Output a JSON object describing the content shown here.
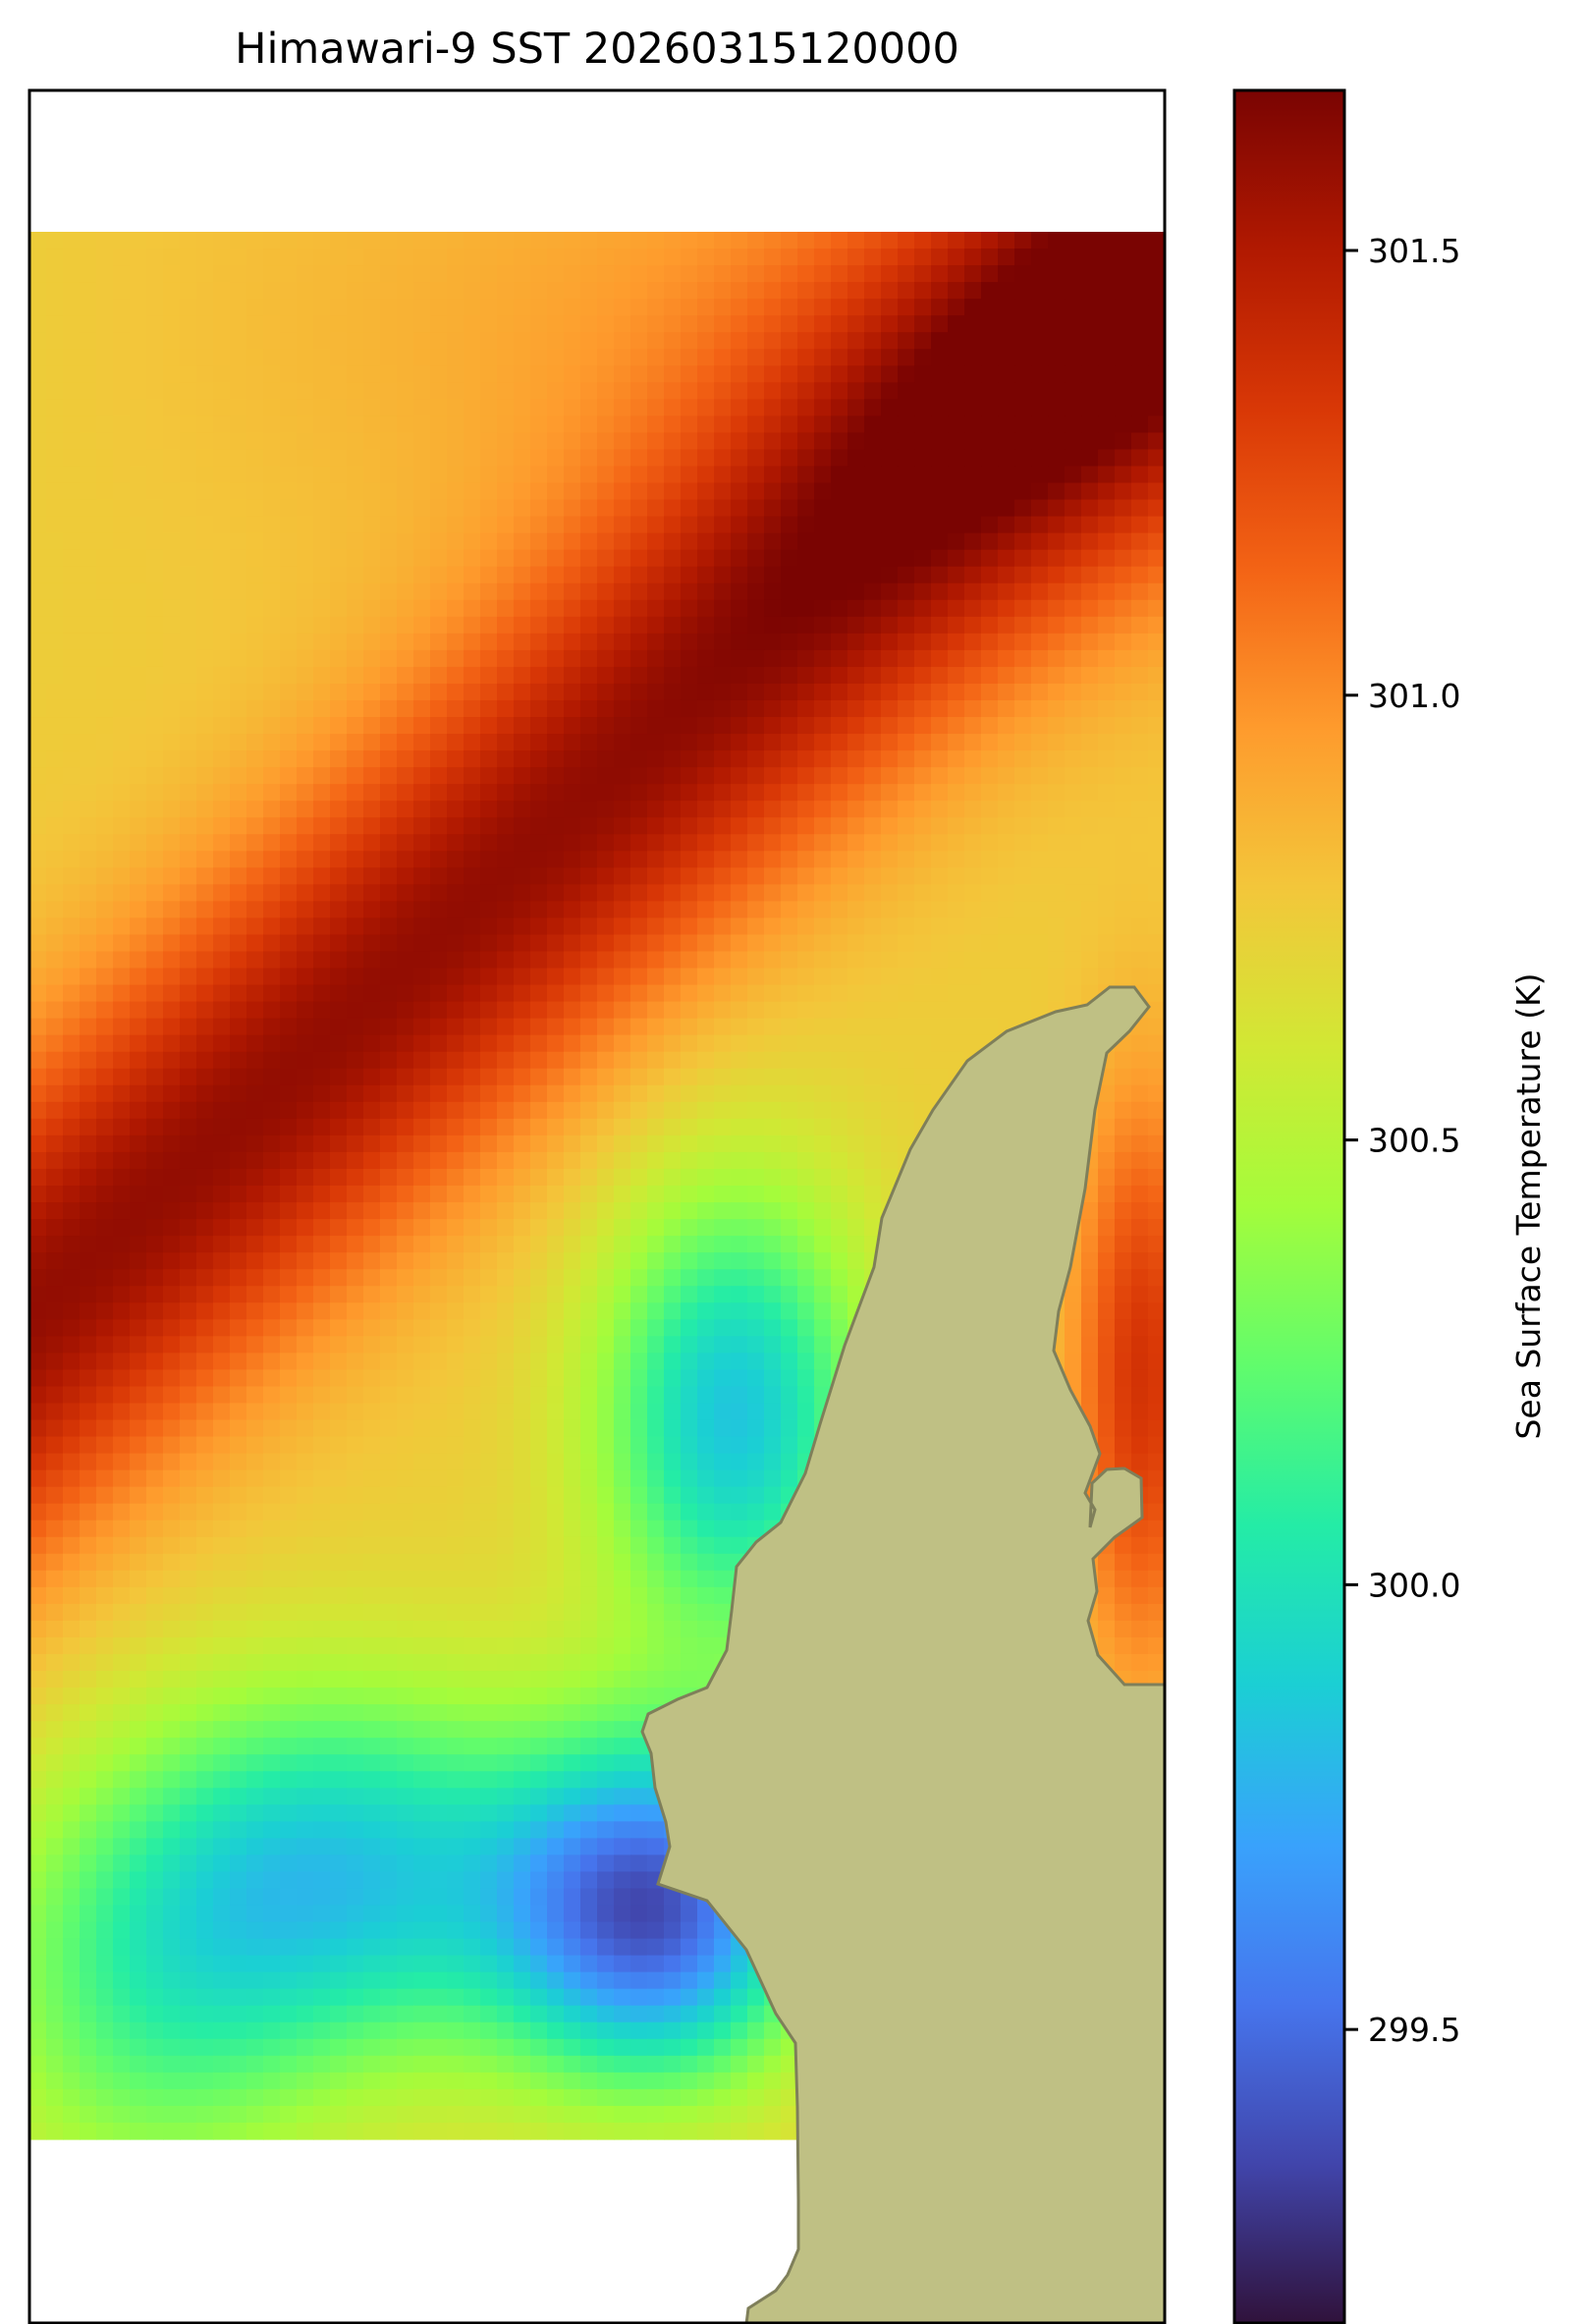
{
  "title": "Himawari-9 SST 20260315120000",
  "colorbar": {
    "label": "Sea Surface Temperature (K)",
    "range": [
      299.17,
      301.68
    ],
    "ticks": [
      {
        "value": 301.5,
        "label": "301.5"
      },
      {
        "value": 301.0,
        "label": "301.0"
      },
      {
        "value": 300.5,
        "label": "300.5"
      },
      {
        "value": 300.0,
        "label": "300.0"
      },
      {
        "value": 299.5,
        "label": "299.5"
      }
    ],
    "colormap": "turbo",
    "colormap_stops": [
      "#30123b",
      "#4145ab",
      "#4675ed",
      "#39a2fc",
      "#1bcfd4",
      "#24eca6",
      "#61fc6c",
      "#a4fc3b",
      "#d1e834",
      "#f3c63a",
      "#fe9b2d",
      "#f36315",
      "#d93806",
      "#b11901",
      "#7a0402"
    ]
  },
  "colors": {
    "land": "#bfc084",
    "coastline": "#7f7f5a",
    "nodata": "#ffffff",
    "frame": "#000000"
  },
  "chart_data": {
    "type": "heatmap",
    "title": "Himawari-9 SST 20260315120000",
    "value_label": "Sea Surface Temperature (K)",
    "value_range": [
      299.17,
      301.68
    ],
    "colormap": "turbo",
    "features": [
      "land mask with coastline",
      "no-data areas in white"
    ]
  }
}
